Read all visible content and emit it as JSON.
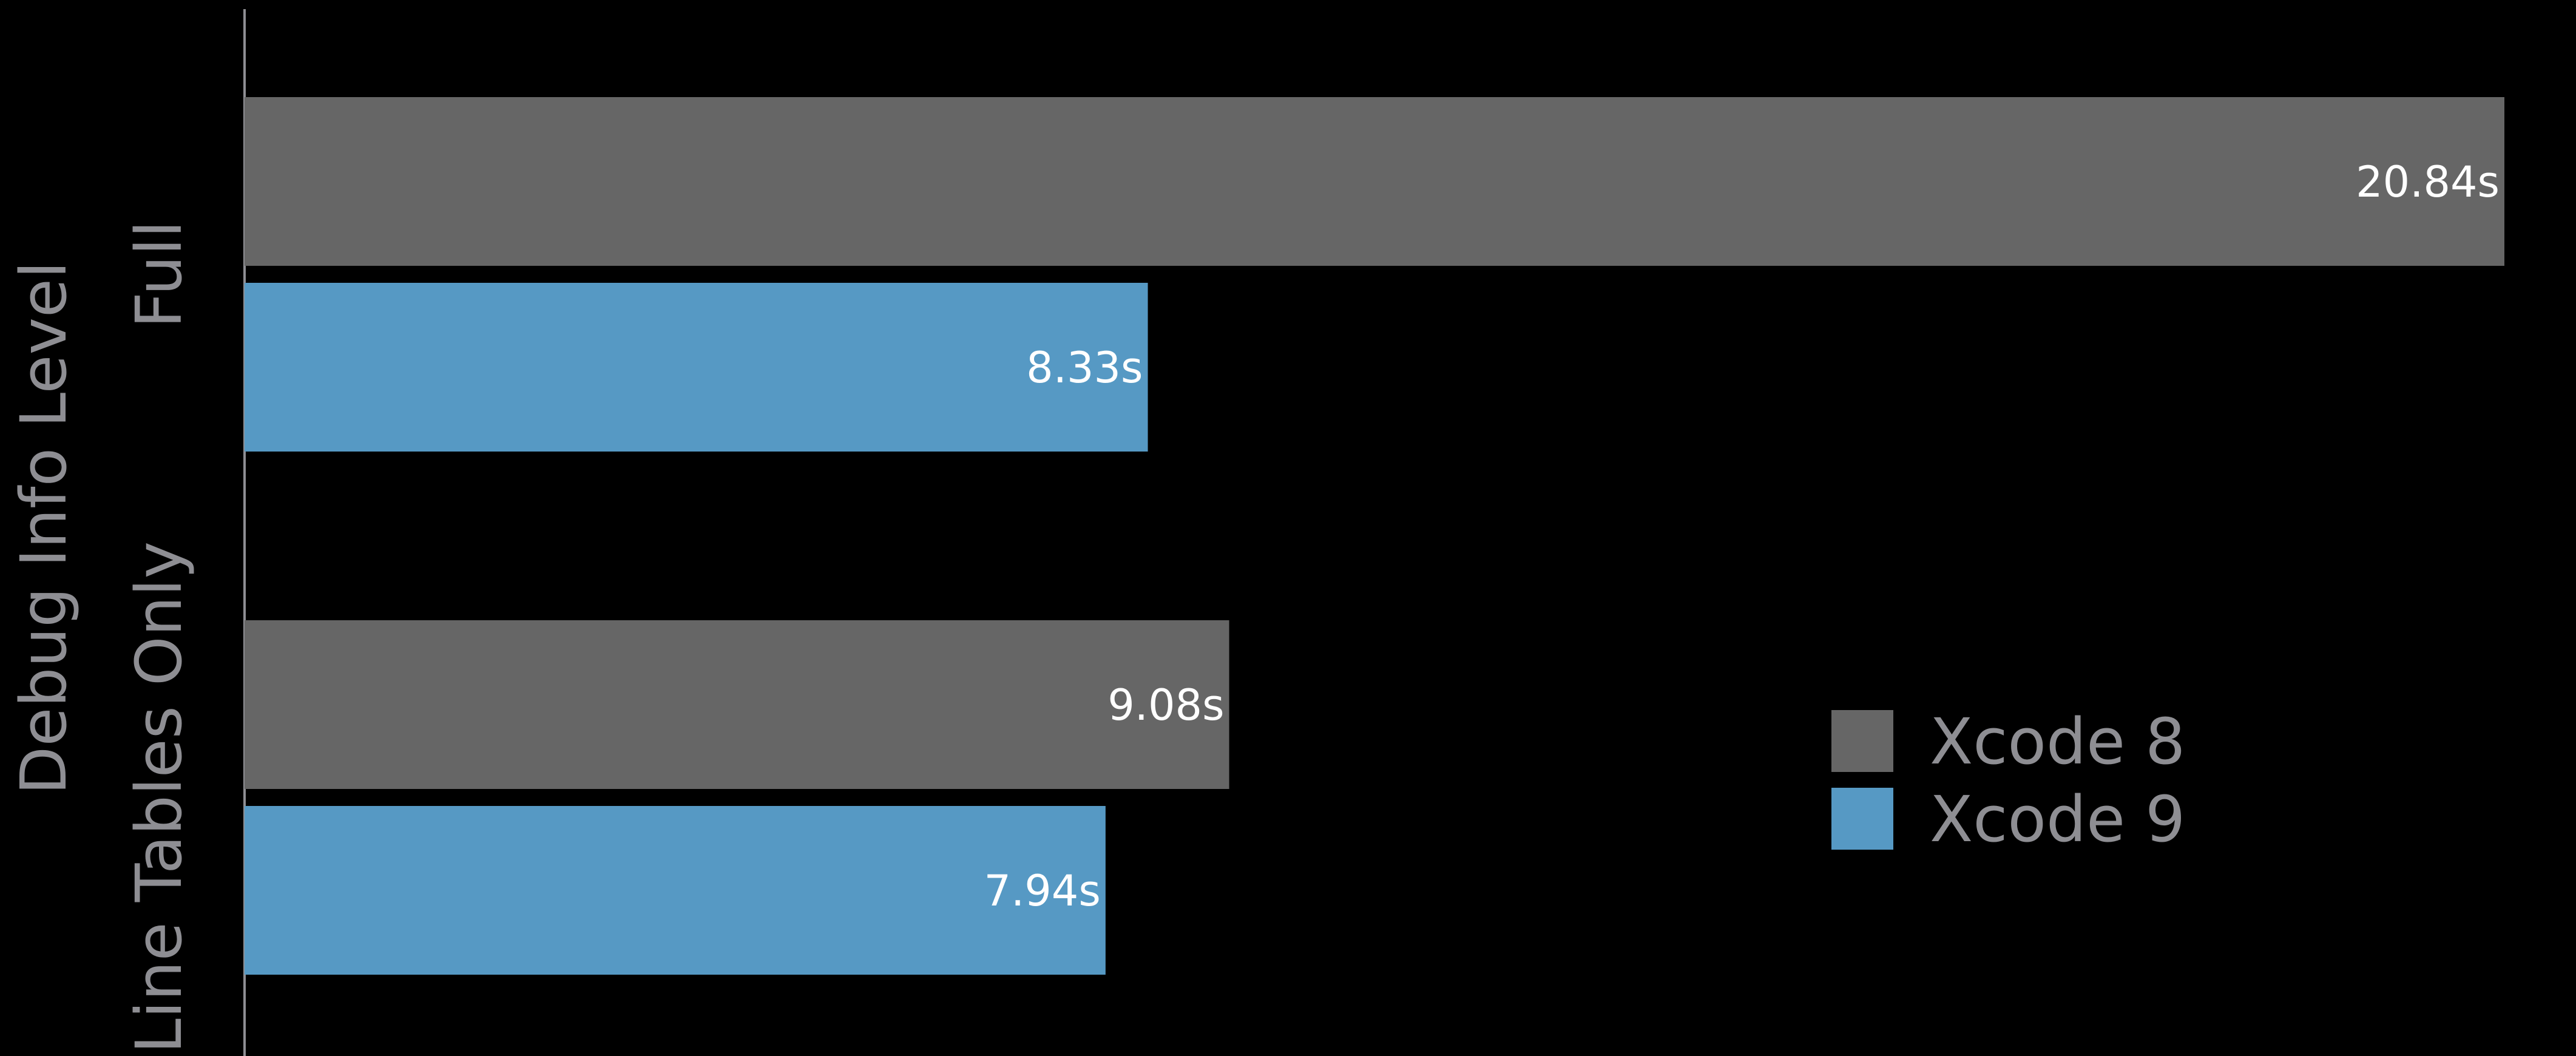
{
  "chart_data": {
    "type": "bar",
    "orientation": "horizontal",
    "ylabel": "Debug Info Level",
    "xlabel": "",
    "categories": [
      "Full",
      "Line Tables Only"
    ],
    "series": [
      {
        "name": "Xcode 8",
        "color": "#666666",
        "values": [
          20.84,
          9.08
        ],
        "labels": [
          "20.84s",
          "9.08s"
        ]
      },
      {
        "name": "Xcode 9",
        "color": "#5699c4",
        "values": [
          8.33,
          7.94
        ],
        "labels": [
          "8.33s",
          "7.94s"
        ]
      }
    ],
    "xlim": [
      0,
      20.84
    ],
    "grid": false,
    "legend_position": "bottom-right",
    "axis_color": "#8e8e93"
  }
}
